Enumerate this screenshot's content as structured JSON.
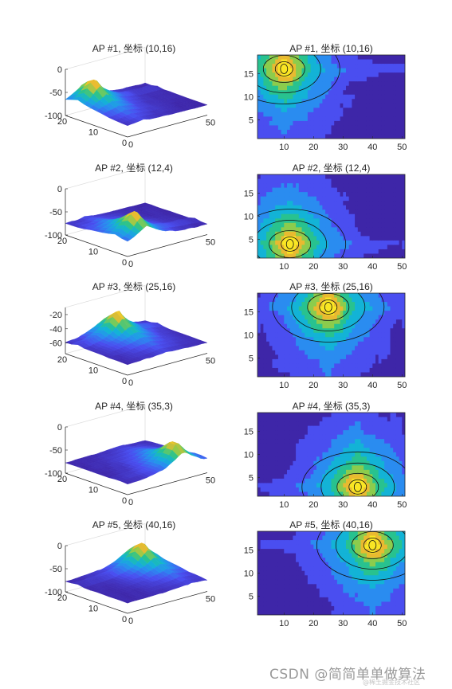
{
  "chart_data": [
    {
      "type": "surface",
      "title": "AP #1, 坐标 (10,16)",
      "ap": {
        "x": 10,
        "y": 16
      },
      "zticks": [
        "0",
        "-50",
        "-100"
      ],
      "yticks": [
        "20",
        "10",
        "0"
      ],
      "xticks": [
        "0",
        "50"
      ],
      "zlim": [
        -100,
        0
      ],
      "xlim": [
        0,
        50
      ],
      "ylim": [
        0,
        20
      ]
    },
    {
      "type": "contour",
      "title": "AP #1, 坐标 (10,16)",
      "ap": {
        "x": 10,
        "y": 16
      },
      "xticks": [
        "10",
        "20",
        "30",
        "40",
        "50"
      ],
      "yticks": [
        "15",
        "10",
        "5"
      ],
      "xlim": [
        1,
        51
      ],
      "ylim": [
        1,
        19
      ]
    },
    {
      "type": "surface",
      "title": "AP #2, 坐标 (12,4)",
      "ap": {
        "x": 12,
        "y": 4
      },
      "zticks": [
        "0",
        "-50",
        "-100"
      ],
      "yticks": [
        "20",
        "10",
        "0"
      ],
      "xticks": [
        "0",
        "50"
      ],
      "zlim": [
        -100,
        0
      ],
      "xlim": [
        0,
        50
      ],
      "ylim": [
        0,
        20
      ]
    },
    {
      "type": "contour",
      "title": "AP #2, 坐标 (12,4)",
      "ap": {
        "x": 12,
        "y": 4
      },
      "xticks": [
        "10",
        "20",
        "30",
        "40",
        "50"
      ],
      "yticks": [
        "15",
        "10",
        "5"
      ],
      "xlim": [
        1,
        51
      ],
      "ylim": [
        1,
        19
      ]
    },
    {
      "type": "surface",
      "title": "AP #3, 坐标 (25,16)",
      "ap": {
        "x": 25,
        "y": 16
      },
      "zticks": [
        "-20",
        "-40",
        "-60"
      ],
      "yticks": [
        "20",
        "10",
        "0"
      ],
      "xticks": [
        "0",
        "50"
      ],
      "zlim": [
        -75,
        -10
      ],
      "xlim": [
        0,
        50
      ],
      "ylim": [
        0,
        20
      ]
    },
    {
      "type": "contour",
      "title": "AP #3, 坐标 (25,16)",
      "ap": {
        "x": 25,
        "y": 16
      },
      "xticks": [
        "10",
        "20",
        "30",
        "40",
        "50"
      ],
      "yticks": [
        "15",
        "10",
        "5"
      ],
      "xlim": [
        1,
        51
      ],
      "ylim": [
        1,
        19
      ]
    },
    {
      "type": "surface",
      "title": "AP #4, 坐标 (35,3)",
      "ap": {
        "x": 35,
        "y": 3
      },
      "zticks": [
        "0",
        "-50",
        "-100"
      ],
      "yticks": [
        "20",
        "10",
        "0"
      ],
      "xticks": [
        "0",
        "50"
      ],
      "zlim": [
        -100,
        0
      ],
      "xlim": [
        0,
        50
      ],
      "ylim": [
        0,
        20
      ]
    },
    {
      "type": "contour",
      "title": "AP #4, 坐标 (35,3)",
      "ap": {
        "x": 35,
        "y": 3
      },
      "xticks": [
        "10",
        "20",
        "30",
        "40",
        "50"
      ],
      "yticks": [
        "15",
        "10",
        "5"
      ],
      "xlim": [
        1,
        51
      ],
      "ylim": [
        1,
        19
      ]
    },
    {
      "type": "surface",
      "title": "AP #5, 坐标 (40,16)",
      "ap": {
        "x": 40,
        "y": 16
      },
      "zticks": [
        "0",
        "-50",
        "-100"
      ],
      "yticks": [
        "20",
        "10",
        "0"
      ],
      "xticks": [
        "0",
        "50"
      ],
      "zlim": [
        -100,
        0
      ],
      "xlim": [
        0,
        50
      ],
      "ylim": [
        0,
        20
      ]
    },
    {
      "type": "contour",
      "title": "AP #5, 坐标 (40,16)",
      "ap": {
        "x": 40,
        "y": 16
      },
      "xticks": [
        "10",
        "20",
        "30",
        "40",
        "50"
      ],
      "yticks": [
        "15",
        "10",
        "5"
      ],
      "xlim": [
        1,
        51
      ],
      "ylim": [
        1,
        19
      ]
    }
  ],
  "colormap": [
    "#3e26a8",
    "#4a4ef0",
    "#2a8cf0",
    "#13b3d6",
    "#28c28f",
    "#8ccc4d",
    "#e9ba30",
    "#f9e624"
  ],
  "watermark": {
    "main": "CSDN @简简单单做算法",
    "sub": "@稀土掘金技术社区"
  }
}
